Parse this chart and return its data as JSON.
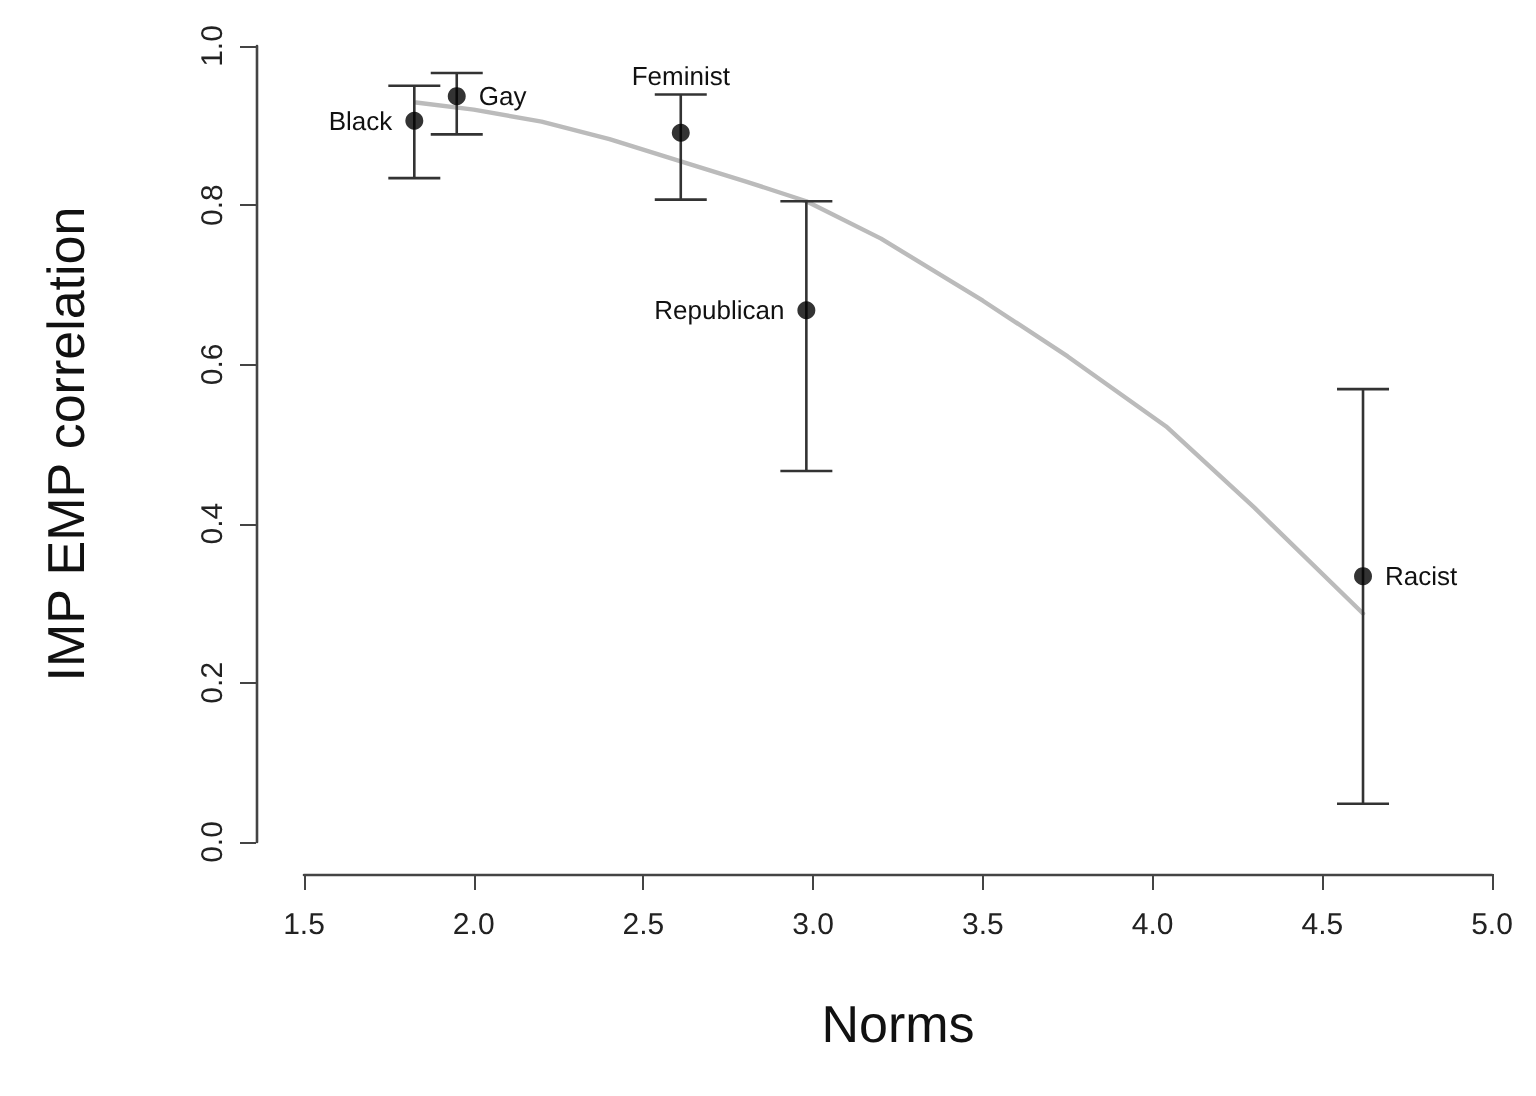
{
  "chart_data": {
    "type": "scatter",
    "xlabel": "Norms",
    "ylabel": "IMP EMP correlation",
    "xlim": [
      1.5,
      5.0
    ],
    "xticks": [
      {
        "value": 1.5,
        "label": "1.5"
      },
      {
        "value": 2,
        "label": "2.0"
      },
      {
        "value": 2.5,
        "label": "2.5"
      },
      {
        "value": 3,
        "label": "3.0"
      },
      {
        "value": 3.5,
        "label": "3.5"
      },
      {
        "value": 4,
        "label": "4.0"
      },
      {
        "value": 4.5,
        "label": "4.5"
      },
      {
        "value": 5,
        "label": "5.0"
      }
    ],
    "ylim": [
      0,
      1.0
    ],
    "yticks": [
      {
        "value": 0,
        "label": "0.0"
      },
      {
        "value": 0.2,
        "label": "0.2"
      },
      {
        "value": 0.4,
        "label": "0.4"
      },
      {
        "value": 0.6,
        "label": "0.6"
      },
      {
        "value": 0.8,
        "label": "0.8"
      },
      {
        "value": 1,
        "label": "1.0"
      }
    ],
    "grid": false,
    "marker": "circle",
    "series": [
      {
        "type": "line",
        "color": "#bbbbbb",
        "marker": "none",
        "x": [
          1.83,
          2.0,
          2.2,
          2.4,
          2.61,
          2.8,
          2.98,
          3.2,
          3.5,
          3.75,
          4.04,
          4.3,
          4.62
        ],
        "values": [
          0.929,
          0.92,
          0.905,
          0.883,
          0.855,
          0.83,
          0.805,
          0.758,
          0.68,
          0.61,
          0.522,
          0.42,
          0.287
        ]
      },
      {
        "color": "#000000",
        "x": [
          1.825,
          1.95,
          2.61,
          2.98,
          4.62
        ],
        "values": [
          0.906,
          0.937,
          0.891,
          0.668,
          0.334
        ],
        "errors": [
          [
            0.834,
            0.95
          ],
          [
            0.889,
            0.966
          ],
          [
            0.807,
            0.939
          ],
          [
            0.466,
            0.805
          ],
          [
            0.048,
            0.569
          ]
        ]
      }
    ],
    "annotations": [
      {
        "text": "Black",
        "x": 1.825,
        "y": 0.906
      },
      {
        "text": "Gay",
        "x": 1.95,
        "y": 0.937
      },
      {
        "text": "Feminist",
        "x": 2.61,
        "y": 0.891
      },
      {
        "text": "Republican",
        "x": 2.98,
        "y": 0.668
      },
      {
        "text": "Racist",
        "x": 4.62,
        "y": 0.334
      }
    ]
  }
}
